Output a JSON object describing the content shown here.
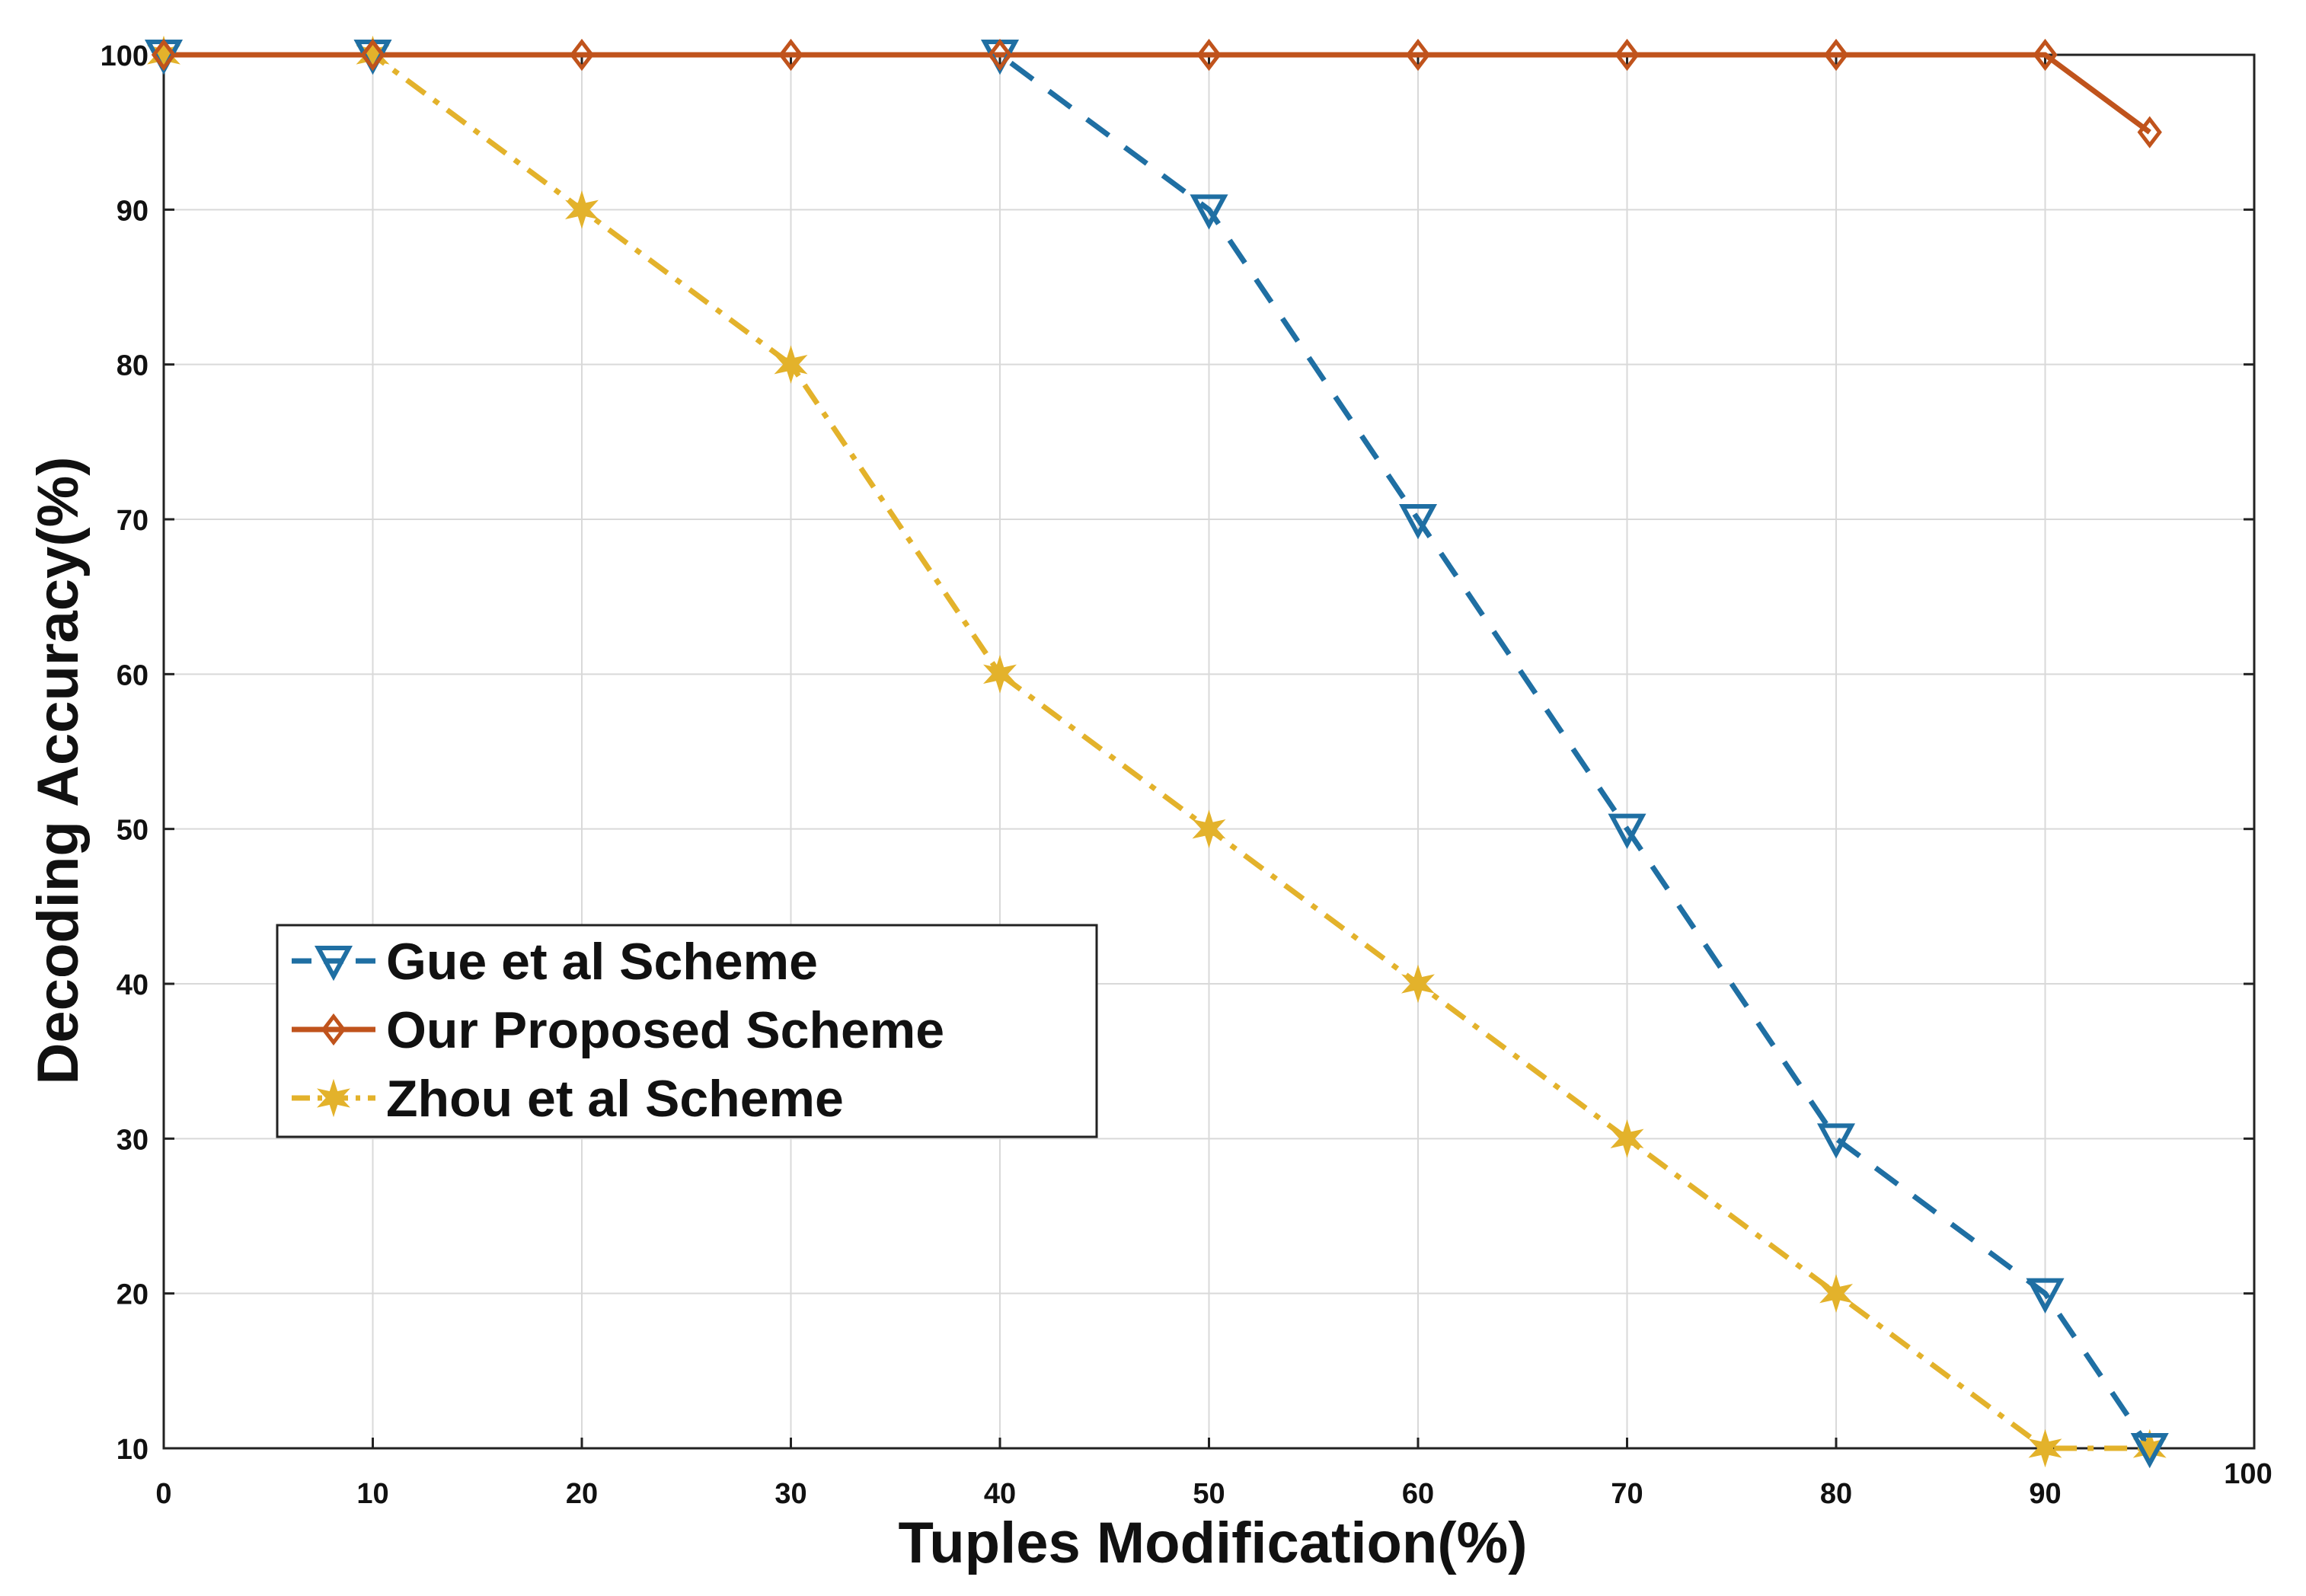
{
  "chart_data": {
    "type": "line",
    "title": "",
    "xlabel": "Tuples Modification(%)",
    "ylabel": "Decoding Accuracy(%)",
    "xlim": [
      0,
      100
    ],
    "ylim": [
      10,
      100
    ],
    "xticks": [
      0,
      10,
      20,
      30,
      40,
      50,
      60,
      70,
      80,
      90,
      100
    ],
    "yticks": [
      10,
      20,
      30,
      40,
      50,
      60,
      70,
      80,
      90,
      100
    ],
    "grid": true,
    "legend_position": "center-left",
    "series": [
      {
        "name": "Gue et al Scheme",
        "color": "#1f6fa3",
        "line_style": "dashed",
        "marker": "triangle-down",
        "x": [
          0,
          10,
          40,
          50,
          60,
          70,
          80,
          90,
          95
        ],
        "values": [
          100,
          100,
          100,
          90,
          70,
          50,
          30,
          20,
          10
        ]
      },
      {
        "name": "Our Proposed Scheme",
        "color": "#c0531c",
        "line_style": "solid",
        "marker": "diamond",
        "x": [
          0,
          10,
          20,
          30,
          40,
          50,
          60,
          70,
          80,
          90,
          95
        ],
        "values": [
          100,
          100,
          100,
          100,
          100,
          100,
          100,
          100,
          100,
          100,
          95
        ]
      },
      {
        "name": "Zhou et al Scheme",
        "color": "#e3b22b",
        "line_style": "dash-dot",
        "marker": "star",
        "x": [
          0,
          10,
          20,
          30,
          40,
          50,
          60,
          70,
          80,
          90,
          95
        ],
        "values": [
          100,
          100,
          90,
          80,
          60,
          50,
          40,
          30,
          20,
          10,
          10
        ]
      }
    ]
  }
}
